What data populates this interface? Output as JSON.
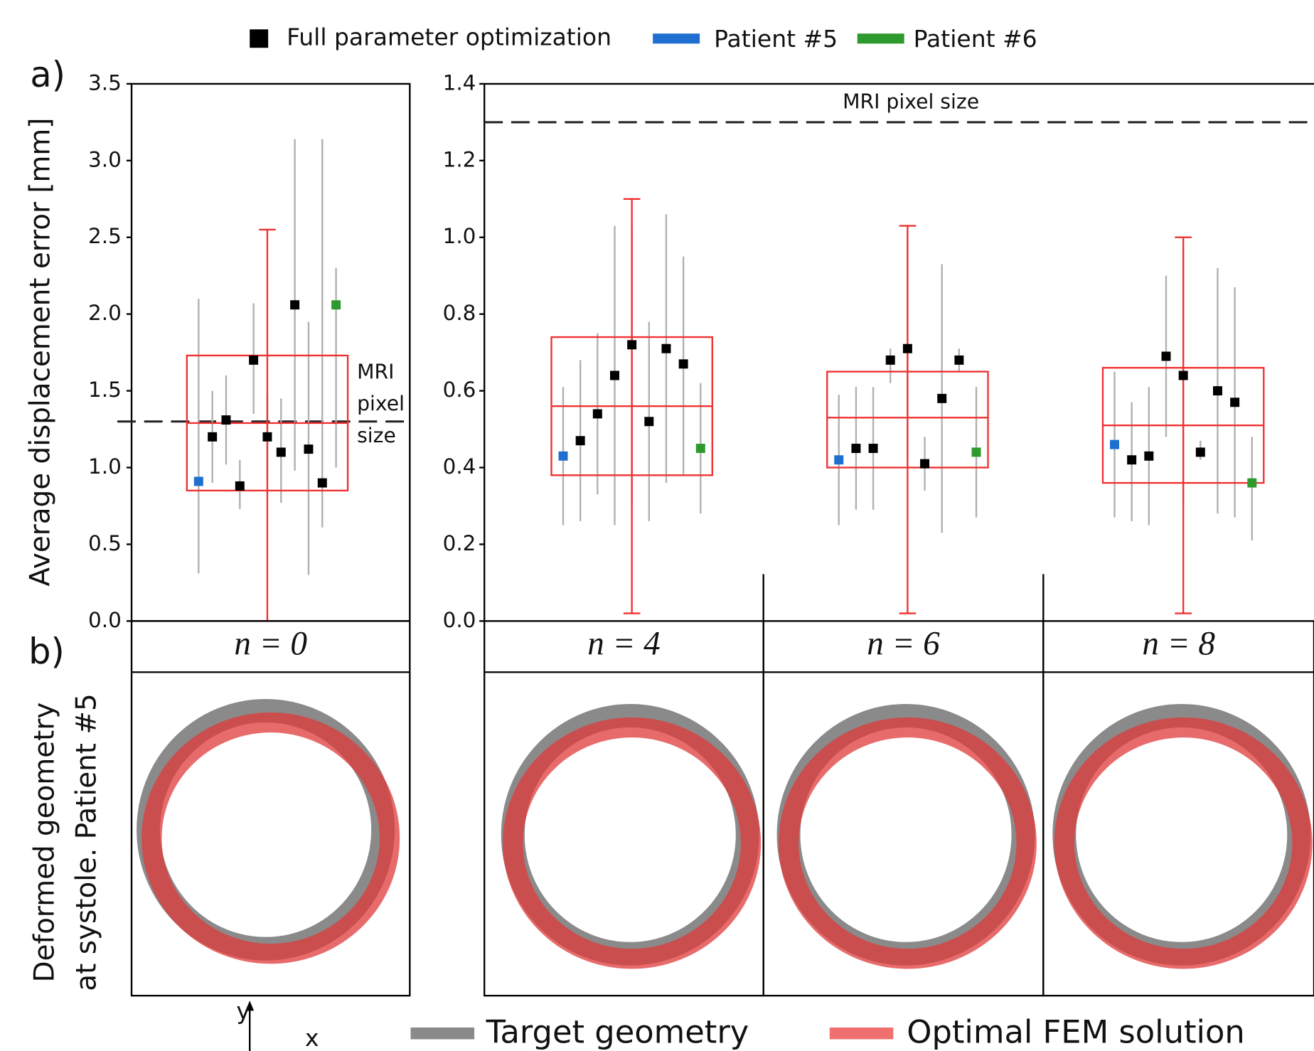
{
  "figure": {
    "panel_a": "a)",
    "panel_b": "b)",
    "ylabel": "Average displacement error [mm]",
    "legend": [
      {
        "name": "Full parameter optimization",
        "color": "#000000"
      },
      {
        "name": "Patient #5",
        "color": "#1f6fd0"
      },
      {
        "name": "Patient #6",
        "color": "#2e9a2e"
      }
    ]
  },
  "geometry": {
    "ylabel_lines": [
      "Deformed geometry",
      "at systole. Patient #5"
    ],
    "legend": [
      {
        "name": "Target geometry",
        "color": "#8a8a8a"
      },
      {
        "name": "Optimal FEM solution",
        "color": "#f07070"
      }
    ],
    "axes": {
      "x": "x",
      "y": "y"
    }
  },
  "chart_data": [
    {
      "type": "scatter-box",
      "ylim": [
        0,
        3.5
      ],
      "yticks": [
        {
          "value": 0,
          "label": "0.0"
        },
        {
          "value": 0.5,
          "label": "0.5"
        },
        {
          "value": 1,
          "label": "1.0"
        },
        {
          "value": 1.5,
          "label": "1.5"
        },
        {
          "value": 2,
          "label": "2.0"
        },
        {
          "value": 2.5,
          "label": "2.5"
        },
        {
          "value": 3,
          "label": "3.0"
        },
        {
          "value": 3.5,
          "label": "3.5"
        }
      ],
      "threshold": {
        "value": 1.3,
        "label": [
          "MRI",
          "pixel",
          "size"
        ]
      },
      "groups": [
        {
          "label": "n = 0",
          "patient5": {
            "value": 0.91,
            "low": 0.31,
            "high": 2.1
          },
          "others": [
            {
              "value": 1.2,
              "low": 0.9,
              "high": 1.5
            },
            {
              "value": 1.31,
              "low": 1.02,
              "high": 1.6
            },
            {
              "value": 0.88,
              "low": 0.73,
              "high": 1.05
            },
            {
              "value": 1.7,
              "low": 1.35,
              "high": 2.07
            },
            {
              "value": 1.2,
              "low": 0.93,
              "high": 1.48
            },
            {
              "value": 1.1,
              "low": 0.77,
              "high": 1.45
            },
            {
              "value": 2.06,
              "low": 0.98,
              "high": 3.14
            },
            {
              "value": 1.12,
              "low": 0.3,
              "high": 1.95
            },
            {
              "value": 0.9,
              "low": 0.61,
              "high": 3.14
            }
          ],
          "patient6": {
            "value": 2.06,
            "low": 1.0,
            "high": 2.3
          },
          "box": {
            "q1": 0.85,
            "median": 1.29,
            "q3": 1.73,
            "whisker_low": 0.0,
            "whisker_high": 2.55
          }
        }
      ]
    },
    {
      "type": "scatter-box",
      "ylim": [
        0,
        1.4
      ],
      "yticks": [
        {
          "value": 0,
          "label": "0.0"
        },
        {
          "value": 0.2,
          "label": "0.2"
        },
        {
          "value": 0.4,
          "label": "0.4"
        },
        {
          "value": 0.6,
          "label": "0.6"
        },
        {
          "value": 0.8,
          "label": "0.8"
        },
        {
          "value": 1,
          "label": "1.0"
        },
        {
          "value": 1.2,
          "label": "1.2"
        },
        {
          "value": 1.4,
          "label": "1.4"
        }
      ],
      "threshold": {
        "value": 1.3,
        "label": "MRI pixel size"
      },
      "groups": [
        {
          "label": "n = 4",
          "patient5": {
            "value": 0.43,
            "low": 0.25,
            "high": 0.61
          },
          "others": [
            {
              "value": 0.47,
              "low": 0.26,
              "high": 0.68
            },
            {
              "value": 0.54,
              "low": 0.33,
              "high": 0.75
            },
            {
              "value": 0.64,
              "low": 0.25,
              "high": 1.03
            },
            {
              "value": 0.72,
              "low": 0.3,
              "high": 1.03
            },
            {
              "value": 0.52,
              "low": 0.26,
              "high": 0.78
            },
            {
              "value": 0.71,
              "low": 0.36,
              "high": 1.06
            },
            {
              "value": 0.67,
              "low": 0.38,
              "high": 0.95
            }
          ],
          "patient6": {
            "value": 0.45,
            "low": 0.28,
            "high": 0.62
          },
          "box": {
            "q1": 0.38,
            "median": 0.56,
            "q3": 0.74,
            "whisker_low": 0.02,
            "whisker_high": 1.1
          }
        },
        {
          "label": "n = 6",
          "patient5": {
            "value": 0.42,
            "low": 0.25,
            "high": 0.59
          },
          "others": [
            {
              "value": 0.45,
              "low": 0.29,
              "high": 0.61
            },
            {
              "value": 0.45,
              "low": 0.29,
              "high": 0.61
            },
            {
              "value": 0.68,
              "low": 0.62,
              "high": 0.71
            },
            {
              "value": 0.71,
              "low": 0.42,
              "high": 1.0
            },
            {
              "value": 0.41,
              "low": 0.34,
              "high": 0.48
            },
            {
              "value": 0.58,
              "low": 0.23,
              "high": 0.93
            },
            {
              "value": 0.68,
              "low": 0.65,
              "high": 0.71
            }
          ],
          "patient6": {
            "value": 0.44,
            "low": 0.27,
            "high": 0.61
          },
          "box": {
            "q1": 0.4,
            "median": 0.53,
            "q3": 0.65,
            "whisker_low": 0.02,
            "whisker_high": 1.03
          }
        },
        {
          "label": "n = 8",
          "patient5": {
            "value": 0.46,
            "low": 0.27,
            "high": 0.65
          },
          "others": [
            {
              "value": 0.42,
              "low": 0.26,
              "high": 0.57
            },
            {
              "value": 0.43,
              "low": 0.25,
              "high": 0.61
            },
            {
              "value": 0.69,
              "low": 0.48,
              "high": 0.9
            },
            {
              "value": 0.64,
              "low": 0.3,
              "high": 0.98
            },
            {
              "value": 0.44,
              "low": 0.42,
              "high": 0.47
            },
            {
              "value": 0.6,
              "low": 0.28,
              "high": 0.92
            },
            {
              "value": 0.57,
              "low": 0.27,
              "high": 0.87
            }
          ],
          "patient6": {
            "value": 0.36,
            "low": 0.21,
            "high": 0.48
          },
          "box": {
            "q1": 0.36,
            "median": 0.51,
            "q3": 0.66,
            "whisker_low": 0.02,
            "whisker_high": 1.0
          }
        }
      ]
    }
  ]
}
